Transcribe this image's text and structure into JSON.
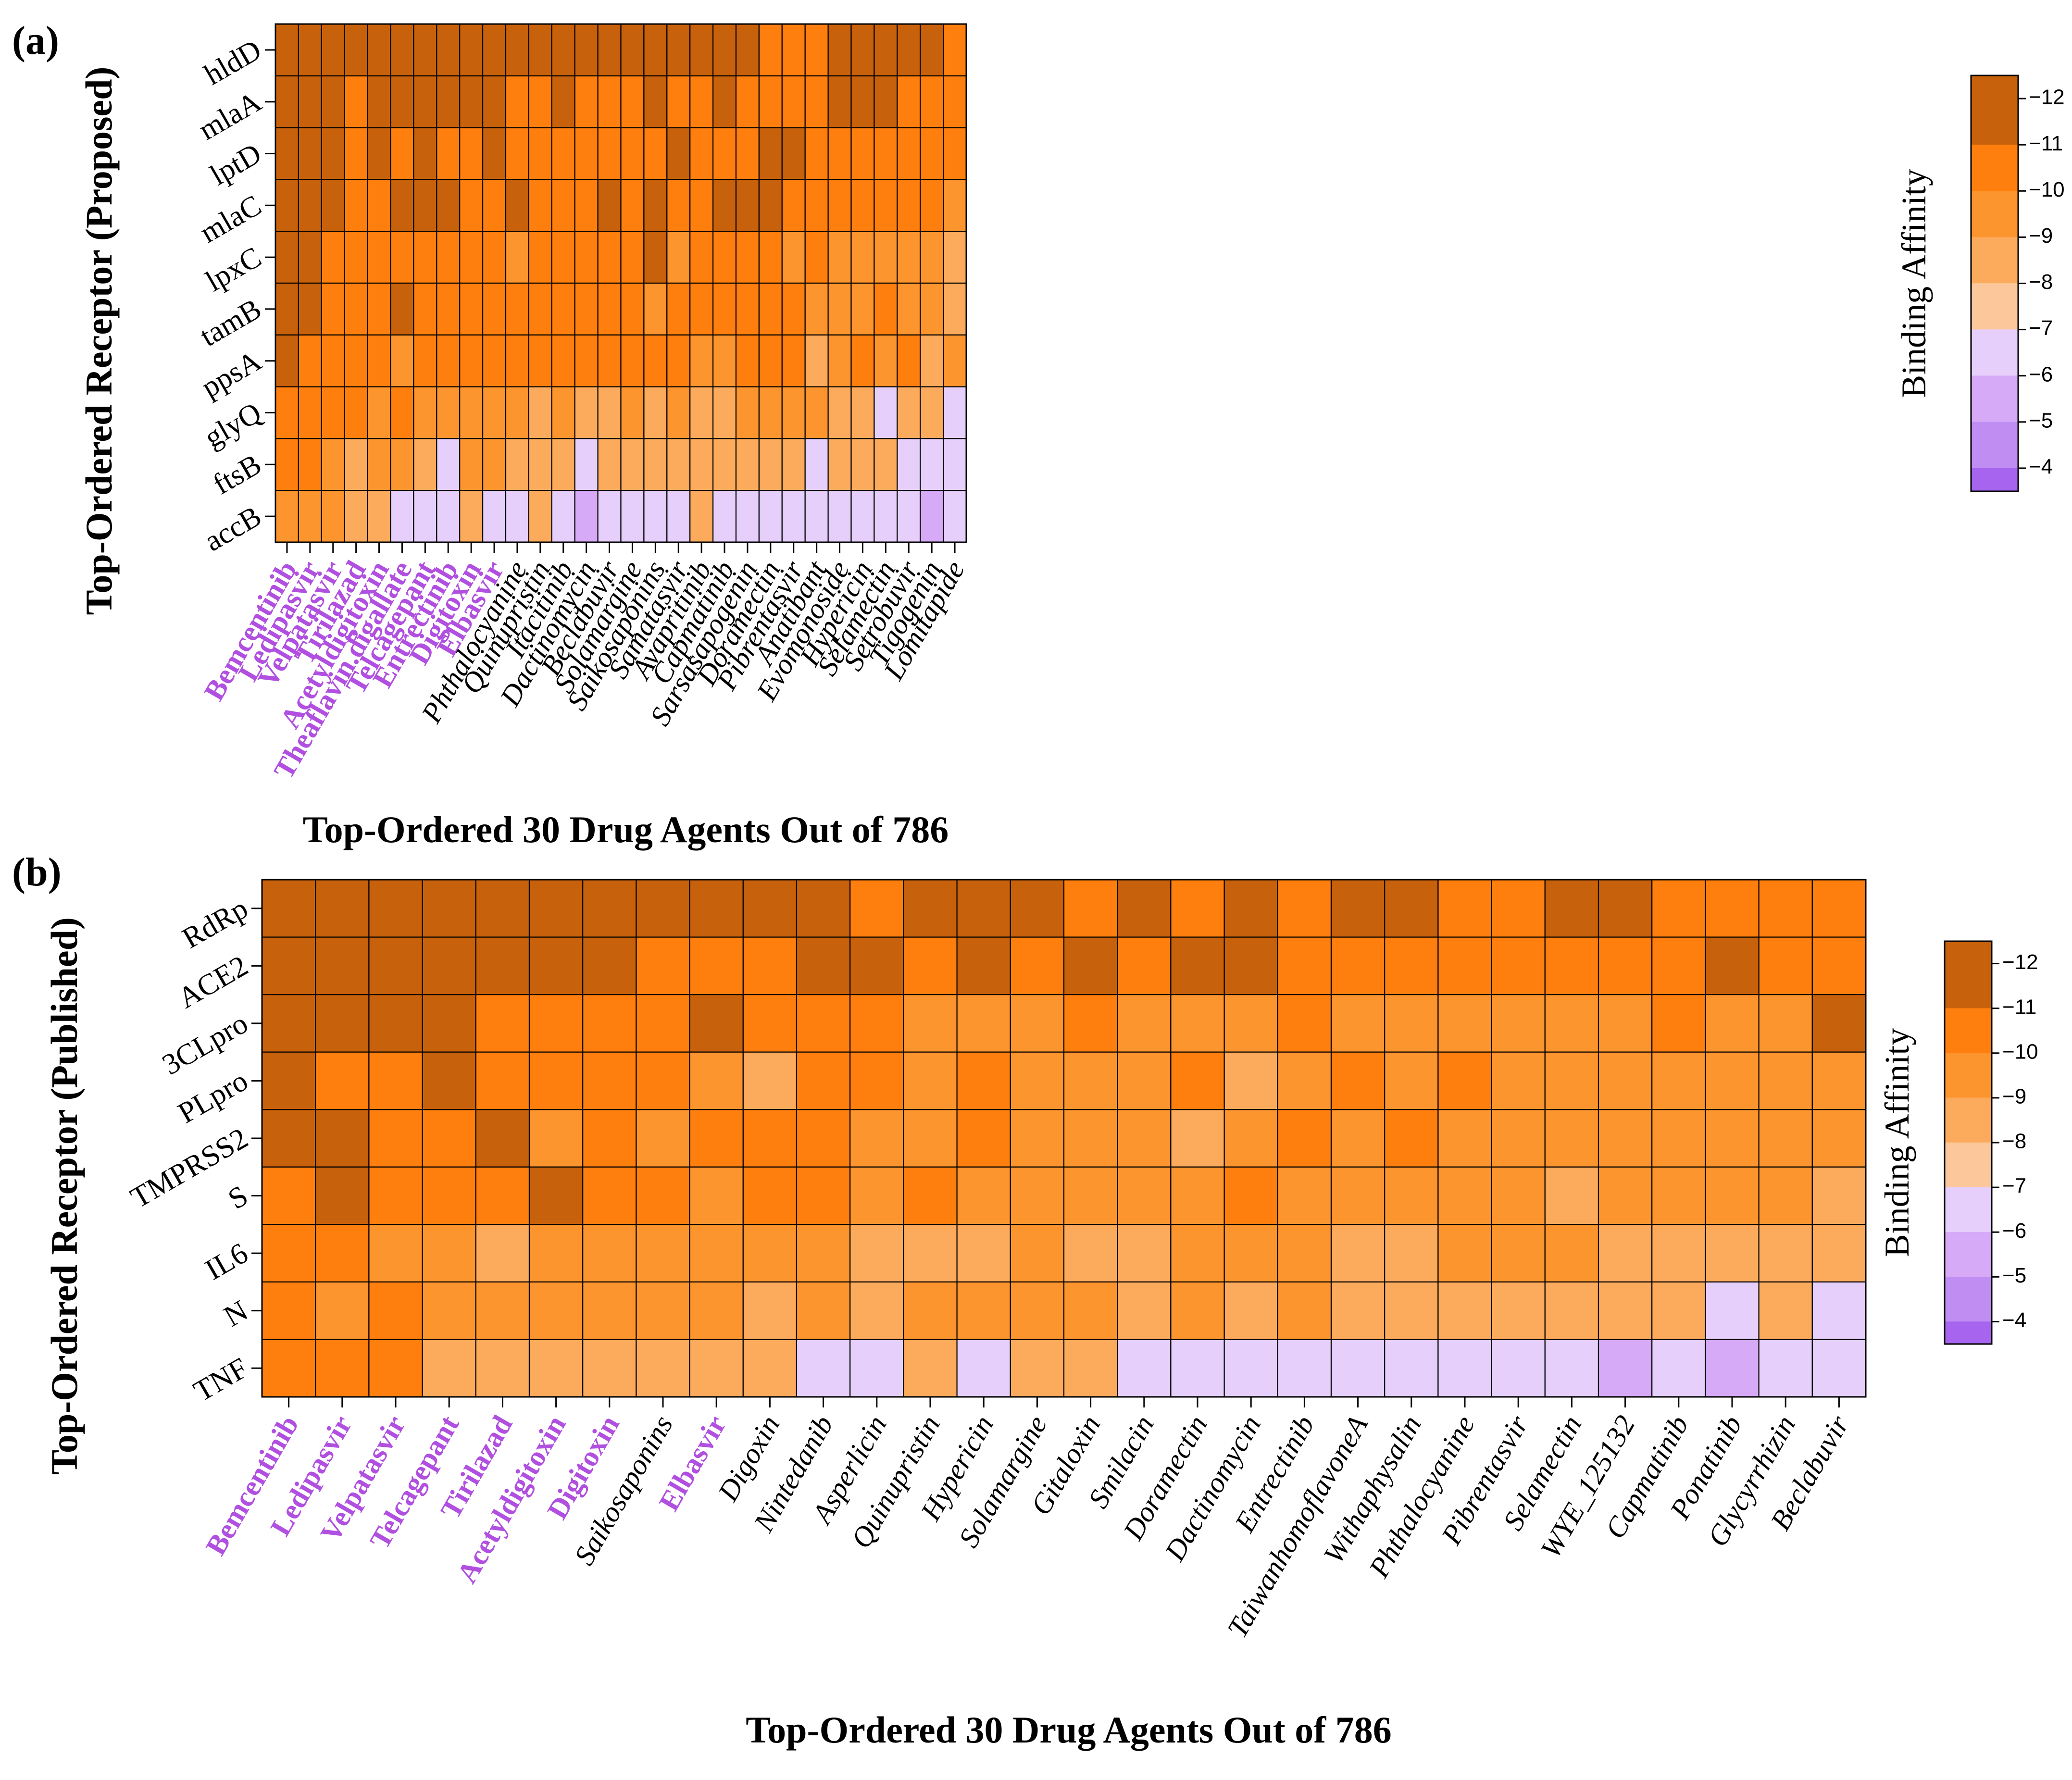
{
  "colors": {
    "highlight_label": "#b04fe0",
    "normal_label": "#000000",
    "grid_line": "#000000",
    "legend_bins": [
      {
        "range": [
          -12.5,
          -12
        ],
        "color": "#c8610b"
      },
      {
        "range": [
          -12,
          -11
        ],
        "color": "#c8610b"
      },
      {
        "range": [
          -11,
          -10
        ],
        "color": "#ff7f0e"
      },
      {
        "range": [
          -10,
          -9
        ],
        "color": "#fd952e"
      },
      {
        "range": [
          -9,
          -8
        ],
        "color": "#fcab5d"
      },
      {
        "range": [
          -8,
          -7
        ],
        "color": "#fcc79b"
      },
      {
        "range": [
          -7,
          -6
        ],
        "color": "#e6d0fb"
      },
      {
        "range": [
          -6,
          -5
        ],
        "color": "#d6aaf7"
      },
      {
        "range": [
          -5,
          -4
        ],
        "color": "#c08ef3"
      },
      {
        "range": [
          -4,
          -3.5
        ],
        "color": "#a764ef"
      }
    ]
  },
  "chart_data": [
    {
      "panel_label": "(a)",
      "type": "heatmap",
      "ylabel": "Top-Ordered Receptor (Proposed)",
      "xlabel": "Top-Ordered 30 Drug Agents Out of 786",
      "legend_title": "Binding Affinity",
      "legend_ticks": [
        "−12",
        "−11",
        "−10",
        "−9",
        "−8",
        "−7",
        "−6",
        "−5",
        "−4"
      ],
      "legend_tick_values": [
        -12,
        -11,
        -10,
        -9,
        -8,
        -7,
        -6,
        -5,
        -4
      ],
      "rows": [
        "hldD",
        "mlaA",
        "lptD",
        "mlaC",
        "lpxC",
        "tamB",
        "ppsA",
        "glyQ",
        "ftsB",
        "accB"
      ],
      "columns": [
        "Bemcentinib",
        "Ledipasvir",
        "Velpatasvir",
        "Tirilazad",
        "Acetyldigitoxin",
        "Theaflavin.digallate",
        "Telcagepant",
        "Entrectinib",
        "Digitoxin",
        "Elbasvir",
        "Phthalocyanine",
        "Quinupristin",
        "Itacitinib",
        "Dactinomycin",
        "Beclabuvir",
        "Solamargine",
        "Saikosaponins",
        "Samatasvir",
        "Avapritinib",
        "Capmatinib",
        "Sarsasapogenin",
        "Doramectin",
        "Pibrentasvir",
        "Anatibant",
        "Evomonoside",
        "Hypericin",
        "Selamectin",
        "Setrobuvir",
        "Tigogenin",
        "Lomitapide"
      ],
      "highlighted_columns": [
        "Bemcentinib",
        "Ledipasvir",
        "Velpatasvir",
        "Tirilazad",
        "Acetyldigitoxin",
        "Theaflavin.digallate",
        "Telcagepant",
        "Entrectinib",
        "Digitoxin",
        "Elbasvir"
      ],
      "values": [
        [
          -12.5,
          -12.5,
          -12.5,
          -11.5,
          -11.5,
          -11.5,
          -11.5,
          -11.5,
          -11.5,
          -11.5,
          -11.5,
          -11.5,
          -11.5,
          -11.5,
          -11.5,
          -11.5,
          -11.5,
          -11.5,
          -11.5,
          -11.5,
          -11.5,
          -10.5,
          -10.5,
          -10.5,
          -11.5,
          -11.5,
          -11.5,
          -11.5,
          -11.5,
          -10.5
        ],
        [
          -12.5,
          -12.5,
          -12.5,
          -10.5,
          -11.5,
          -11.5,
          -11.5,
          -11.5,
          -11.5,
          -11.5,
          -10.5,
          -10.5,
          -11.5,
          -10.5,
          -10.5,
          -10.5,
          -11.5,
          -10.5,
          -10.5,
          -11.5,
          -10.5,
          -10.5,
          -10.5,
          -10.5,
          -11.5,
          -11.5,
          -11.5,
          -10.5,
          -10.5,
          -10.5
        ],
        [
          -12.5,
          -11.5,
          -12.5,
          -10.5,
          -11.5,
          -10.5,
          -11.5,
          -10.5,
          -10.5,
          -11.5,
          -10.5,
          -10.5,
          -10.5,
          -10.5,
          -10.5,
          -10.5,
          -10.5,
          -11.5,
          -10.5,
          -10.5,
          -10.5,
          -11.5,
          -11.5,
          -10.5,
          -10.5,
          -10.5,
          -10.5,
          -10.5,
          -10.5,
          -10.5
        ],
        [
          -12.5,
          -11.5,
          -11.5,
          -10.5,
          -10.5,
          -11.5,
          -11.5,
          -11.5,
          -10.5,
          -10.5,
          -11.5,
          -10.5,
          -10.5,
          -10.5,
          -11.5,
          -10.5,
          -11.5,
          -10.5,
          -10.5,
          -11.5,
          -11.5,
          -11.5,
          -10.5,
          -10.5,
          -10.5,
          -10.5,
          -10.5,
          -10.5,
          -10.5,
          -9.5
        ],
        [
          -11.5,
          -11.5,
          -10.5,
          -10.5,
          -10.5,
          -10.5,
          -10.5,
          -10.5,
          -10.5,
          -10.5,
          -9.5,
          -10.5,
          -10.5,
          -10.5,
          -10.5,
          -10.5,
          -11.5,
          -9.5,
          -10.5,
          -10.5,
          -10.5,
          -10.5,
          -9.5,
          -10.5,
          -9.5,
          -9.5,
          -9.5,
          -9.5,
          -9.5,
          -8.5
        ],
        [
          -11.5,
          -11.5,
          -10.5,
          -10.5,
          -10.5,
          -11.5,
          -10.5,
          -10.5,
          -10.5,
          -10.5,
          -10.5,
          -10.5,
          -10.5,
          -10.5,
          -10.5,
          -10.5,
          -9.5,
          -10.5,
          -10.5,
          -10.5,
          -10.5,
          -10.5,
          -10.5,
          -9.5,
          -9.5,
          -9.5,
          -10.5,
          -9.5,
          -9.5,
          -8.5
        ],
        [
          -11.5,
          -10.5,
          -10.5,
          -10.5,
          -10.5,
          -9.5,
          -10.5,
          -10.5,
          -10.5,
          -10.5,
          -10.5,
          -10.5,
          -10.5,
          -10.5,
          -10.5,
          -10.5,
          -10.5,
          -10.5,
          -9.5,
          -9.5,
          -10.5,
          -10.5,
          -10.5,
          -8.5,
          -9.5,
          -10.5,
          -9.5,
          -10.5,
          -8.5,
          -9.5
        ],
        [
          -10.5,
          -10.5,
          -10.5,
          -10.5,
          -9.5,
          -10.5,
          -9.5,
          -9.5,
          -9.5,
          -9.5,
          -9.5,
          -8.5,
          -9.5,
          -8.5,
          -8.5,
          -9.5,
          -8.5,
          -9.5,
          -8.5,
          -8.5,
          -9.5,
          -9.5,
          -9.5,
          -9.5,
          -8.5,
          -8.5,
          -6.5,
          -8.5,
          -8.5,
          -6.5
        ],
        [
          -10.5,
          -10.5,
          -9.5,
          -8.5,
          -9.5,
          -9.5,
          -8.5,
          -6.5,
          -9.5,
          -9.5,
          -8.5,
          -8.5,
          -8.5,
          -6.5,
          -8.5,
          -8.5,
          -8.5,
          -8.5,
          -8.5,
          -8.5,
          -8.5,
          -8.5,
          -8.5,
          -6.5,
          -8.5,
          -8.5,
          -8.5,
          -6.5,
          -6.5,
          -6.5
        ],
        [
          -9.5,
          -9.5,
          -9.5,
          -8.5,
          -8.5,
          -6.5,
          -6.5,
          -6.5,
          -8.5,
          -6.5,
          -6.5,
          -8.5,
          -6.5,
          -5.5,
          -6.5,
          -6.5,
          -6.5,
          -6.5,
          -8.5,
          -6.5,
          -6.5,
          -6.5,
          -6.5,
          -6.5,
          -6.5,
          -6.5,
          -6.5,
          -6.5,
          -5.5,
          -6.5
        ]
      ]
    },
    {
      "panel_label": "(b)",
      "type": "heatmap",
      "ylabel": "Top-Ordered Receptor (Published)",
      "xlabel": "Top-Ordered 30 Drug Agents Out of 786",
      "legend_title": "Binding Affinity",
      "legend_ticks": [
        "−12",
        "−11",
        "−10",
        "−9",
        "−8",
        "−7",
        "−6",
        "−5",
        "−4"
      ],
      "legend_tick_values": [
        -12,
        -11,
        -10,
        -9,
        -8,
        -7,
        -6,
        -5,
        -4
      ],
      "rows": [
        "RdRp",
        "ACE2",
        "3CLpro",
        "PLpro",
        "TMPRSS2",
        "S",
        "IL6",
        "N",
        "TNF"
      ],
      "columns": [
        "Bemcentinib",
        "Ledipasvir",
        "Velpatasvir",
        "Telcagepant",
        "Tirilazad",
        "Acetyldigitoxin",
        "Digitoxin",
        "Saikosaponins",
        "Elbasvir",
        "Digoxin",
        "Nintedanib",
        "Asperlicin",
        "Quinupristin",
        "Hypericin",
        "Solamargine",
        "Gitaloxin",
        "Smilacin",
        "Doramectin",
        "Dactinomycin",
        "Entrectinib",
        "TaiwanhomoflavoneA",
        "Withaphysalin",
        "Phthalocyanine",
        "Pibrentasvir",
        "Selamectin",
        "WYE_125132",
        "Capmatinib",
        "Ponatinib",
        "Glycyrrhizin",
        "Beclabuvir"
      ],
      "highlighted_columns": [
        "Bemcentinib",
        "Ledipasvir",
        "Velpatasvir",
        "Telcagepant",
        "Tirilazad",
        "Acetyldigitoxin",
        "Digitoxin",
        "Elbasvir"
      ],
      "values": [
        [
          -12.5,
          -12.5,
          -12.5,
          -12.5,
          -12.5,
          -12.5,
          -11.5,
          -11.5,
          -11.5,
          -12.5,
          -11.5,
          -10.5,
          -11.5,
          -11.5,
          -11.5,
          -10.5,
          -11.5,
          -10.5,
          -11.5,
          -10.5,
          -11.5,
          -11.5,
          -10.5,
          -10.5,
          -11.5,
          -11.5,
          -10.5,
          -10.5,
          -10.5,
          -10.5
        ],
        [
          -12.5,
          -12.5,
          -12.5,
          -12.5,
          -11.5,
          -11.5,
          -11.5,
          -10.5,
          -10.5,
          -10.5,
          -11.5,
          -11.5,
          -10.5,
          -11.5,
          -10.5,
          -11.5,
          -10.5,
          -11.5,
          -11.5,
          -10.5,
          -10.5,
          -10.5,
          -10.5,
          -10.5,
          -10.5,
          -10.5,
          -10.5,
          -11.5,
          -10.5,
          -10.5
        ],
        [
          -12.5,
          -11.5,
          -11.5,
          -11.5,
          -10.5,
          -10.5,
          -10.5,
          -10.5,
          -11.5,
          -10.5,
          -10.5,
          -10.5,
          -9.5,
          -9.5,
          -9.5,
          -10.5,
          -9.5,
          -9.5,
          -9.5,
          -10.5,
          -9.5,
          -9.5,
          -9.5,
          -9.5,
          -9.5,
          -9.5,
          -10.5,
          -9.5,
          -9.5,
          -11.5
        ],
        [
          -11.5,
          -10.5,
          -10.5,
          -11.5,
          -10.5,
          -10.5,
          -10.5,
          -10.5,
          -9.5,
          -8.5,
          -10.5,
          -10.5,
          -9.5,
          -10.5,
          -9.5,
          -9.5,
          -9.5,
          -10.5,
          -8.5,
          -9.5,
          -10.5,
          -9.5,
          -10.5,
          -9.5,
          -9.5,
          -9.5,
          -9.5,
          -9.5,
          -9.5,
          -9.5
        ],
        [
          -11.5,
          -11.5,
          -10.5,
          -10.5,
          -11.5,
          -9.5,
          -10.5,
          -9.5,
          -10.5,
          -10.5,
          -10.5,
          -9.5,
          -9.5,
          -10.5,
          -9.5,
          -9.5,
          -9.5,
          -8.5,
          -9.5,
          -10.5,
          -9.5,
          -10.5,
          -9.5,
          -9.5,
          -9.5,
          -9.5,
          -9.5,
          -9.5,
          -9.5,
          -9.5
        ],
        [
          -10.5,
          -11.5,
          -10.5,
          -10.5,
          -10.5,
          -11.5,
          -10.5,
          -10.5,
          -9.5,
          -10.5,
          -10.5,
          -9.5,
          -10.5,
          -9.5,
          -9.5,
          -9.5,
          -9.5,
          -9.5,
          -10.5,
          -9.5,
          -9.5,
          -9.5,
          -9.5,
          -9.5,
          -8.5,
          -9.5,
          -9.5,
          -9.5,
          -9.5,
          -8.5
        ],
        [
          -10.5,
          -10.5,
          -9.5,
          -9.5,
          -8.5,
          -9.5,
          -9.5,
          -9.5,
          -9.5,
          -9.5,
          -9.5,
          -8.5,
          -8.5,
          -8.5,
          -9.5,
          -8.5,
          -8.5,
          -9.5,
          -9.5,
          -9.5,
          -8.5,
          -8.5,
          -9.5,
          -9.5,
          -9.5,
          -8.5,
          -8.5,
          -8.5,
          -8.5,
          -8.5
        ],
        [
          -10.5,
          -9.5,
          -10.5,
          -9.5,
          -9.5,
          -9.5,
          -9.5,
          -9.5,
          -9.5,
          -8.5,
          -9.5,
          -8.5,
          -9.5,
          -9.5,
          -9.5,
          -9.5,
          -8.5,
          -9.5,
          -8.5,
          -9.5,
          -8.5,
          -8.5,
          -8.5,
          -8.5,
          -8.5,
          -8.5,
          -8.5,
          -6.5,
          -8.5,
          -6.5
        ],
        [
          -10.5,
          -10.5,
          -10.5,
          -8.5,
          -8.5,
          -8.5,
          -8.5,
          -8.5,
          -8.5,
          -8.5,
          -6.5,
          -6.5,
          -8.5,
          -6.5,
          -8.5,
          -8.5,
          -6.5,
          -6.5,
          -6.5,
          -6.5,
          -6.5,
          -6.5,
          -6.5,
          -6.5,
          -6.5,
          -5.5,
          -6.5,
          -5.5,
          -6.5,
          -6.5
        ]
      ]
    }
  ]
}
